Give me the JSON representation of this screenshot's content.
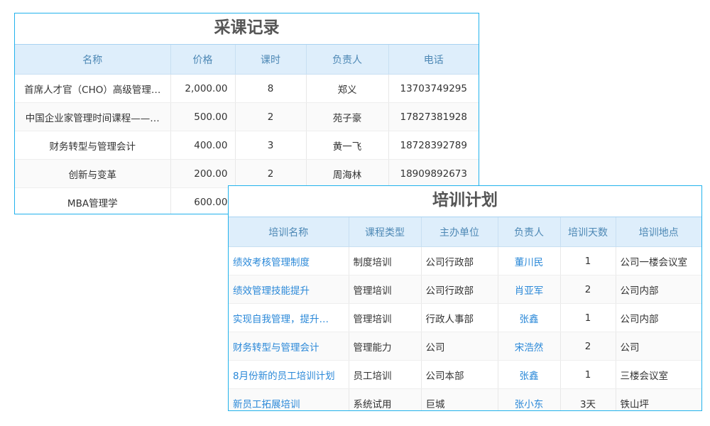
{
  "purchase": {
    "title": "采课记录",
    "headers": [
      "名称",
      "价格",
      "课时",
      "负责人",
      "电话"
    ],
    "rows": [
      [
        "首席人才官（CHO）高级管理…",
        "2,000.00",
        "8",
        "郑义",
        "13703749295"
      ],
      [
        "中国企业家管理时间课程——…",
        "500.00",
        "2",
        "苑子豪",
        "17827381928"
      ],
      [
        "财务转型与管理会计",
        "400.00",
        "3",
        "黄一飞",
        "18728392789"
      ],
      [
        "创新与变革",
        "200.00",
        "2",
        "周海林",
        "18909892673"
      ],
      [
        "MBA管理学",
        "600.00",
        "",
        "",
        ""
      ]
    ]
  },
  "training": {
    "title": "培训计划",
    "headers": [
      "培训名称",
      "课程类型",
      "主办单位",
      "负责人",
      "培训天数",
      "培训地点"
    ],
    "rows": [
      [
        "绩效考核管理制度",
        "制度培训",
        "公司行政部",
        "董川民",
        "1",
        "公司一楼会议室"
      ],
      [
        "绩效管理技能提升",
        "管理培训",
        "公司行政部",
        "肖亚军",
        "2",
        "公司内部"
      ],
      [
        "实现自我管理，提升…",
        "管理培训",
        "行政人事部",
        "张鑫",
        "1",
        "公司内部"
      ],
      [
        "财务转型与管理会计",
        "管理能力",
        "公司",
        "宋浩然",
        "2",
        "公司"
      ],
      [
        "8月份新的员工培训计划",
        "员工培训",
        "公司本部",
        "张鑫",
        "1",
        "三楼会议室"
      ],
      [
        "新员工拓展培训",
        "系统试用",
        "巨城",
        "张小东",
        "3天",
        "铁山坪"
      ]
    ]
  },
  "colors": {
    "border": "#22b2ec",
    "header_bg": "#deeefb",
    "header_text": "#4d88b5",
    "link": "#2a88d8"
  }
}
